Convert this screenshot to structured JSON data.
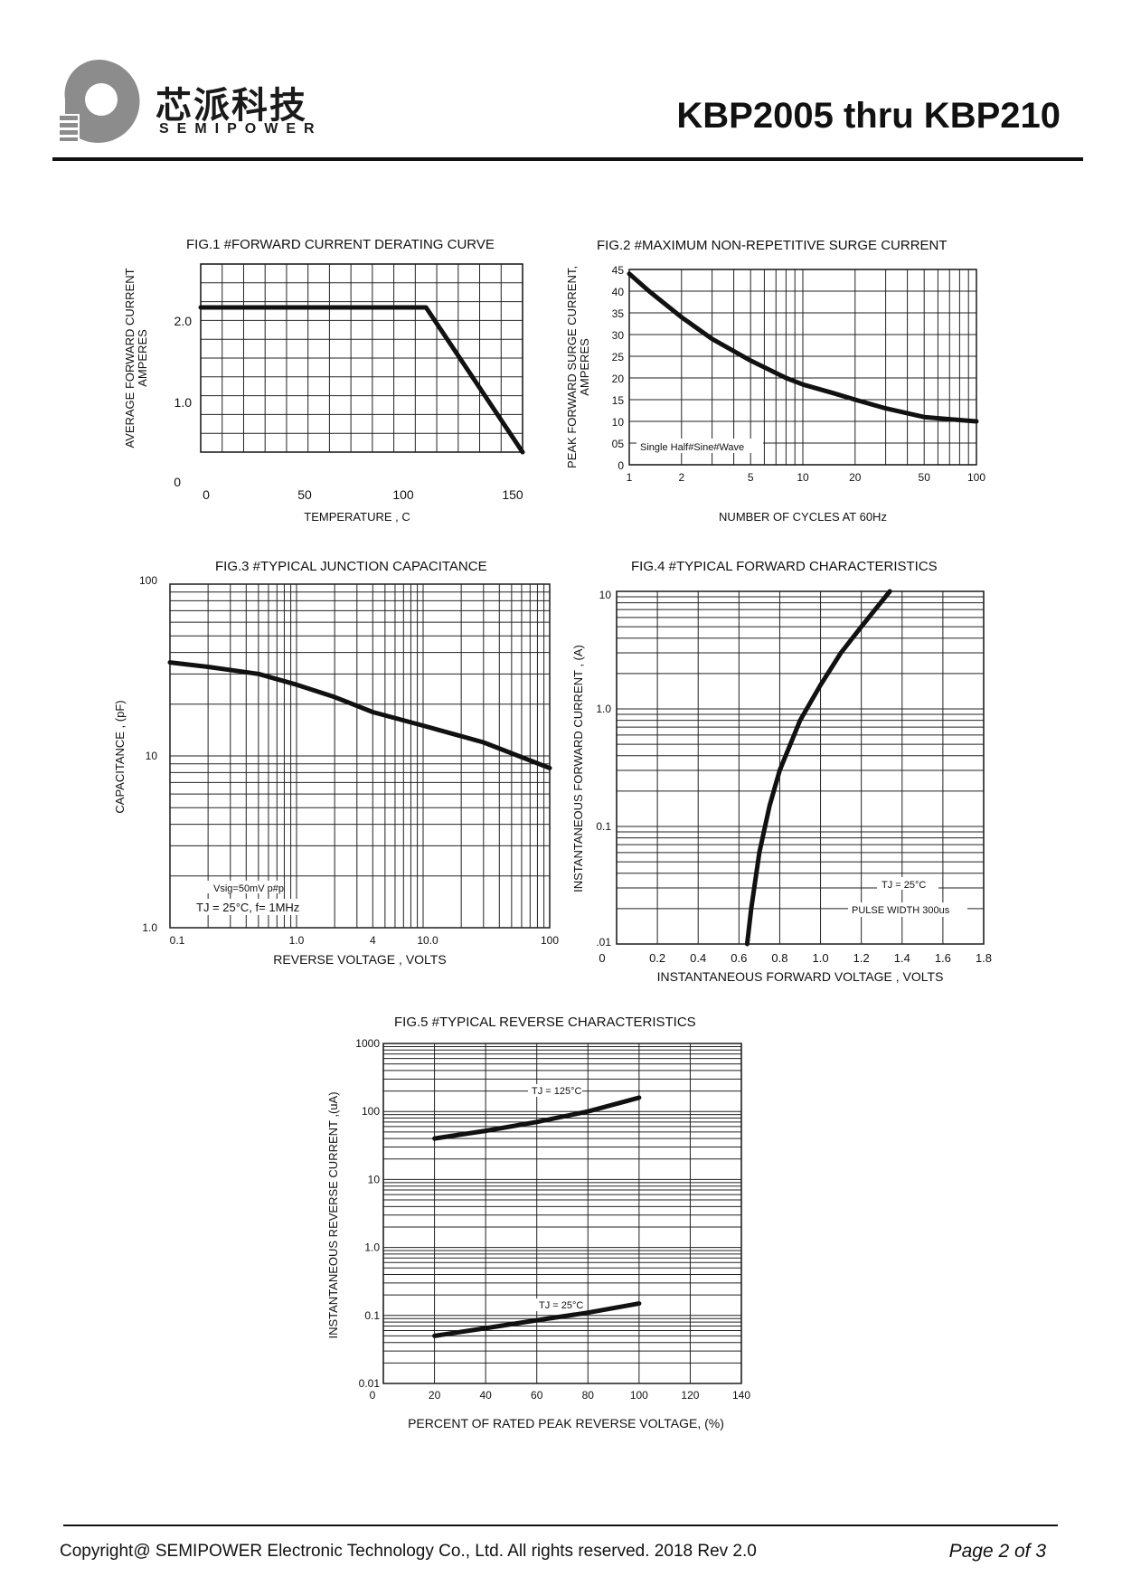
{
  "header": {
    "logo_cn": "芯派科技",
    "logo_en": "SEMIPOWER",
    "title": "KBP2005 thru KBP210"
  },
  "footer": {
    "copyright": "Copyright@ SEMIPOWER Electronic Technology Co., Ltd.  All rights reserved.  2018  Rev  2.0",
    "page": "Page  2  of  3"
  },
  "colors": {
    "ink": "#111111",
    "grid": "#222222",
    "logo_gray": "#8c8c8c"
  },
  "chart_data": [
    {
      "type": "line",
      "title": "FIG.1 #FORWARD CURRENT DERATING CURVE",
      "xlabel": "TEMPERATURE , C",
      "ylabel": [
        "AVERAGE FORWARD CURRENT",
        "AMPERES"
      ],
      "xlim": [
        0,
        150
      ],
      "ylim": [
        0,
        2.6
      ],
      "xticks": [
        "0",
        "50",
        "100",
        "150"
      ],
      "yticks": [
        "0",
        "1.0",
        "2.0"
      ],
      "grid": true,
      "series": [
        {
          "x": [
            0,
            105,
            150
          ],
          "y": [
            2.0,
            2.0,
            0
          ]
        }
      ]
    },
    {
      "type": "line",
      "title": "FIG.2 #MAXIMUM NON-REPETITIVE SURGE CURRENT",
      "xlabel": "NUMBER OF CYCLES AT 60Hz",
      "ylabel": [
        "PEAK FORWARD SURGE CURRENT,",
        "AMPERES"
      ],
      "xscale": "log",
      "xlim": [
        1,
        100
      ],
      "ylim": [
        0,
        45
      ],
      "xticks": [
        "1",
        "2",
        "5",
        "10",
        "20",
        "50",
        "100"
      ],
      "yticks": [
        "0",
        "05",
        "10",
        "15",
        "20",
        "25",
        "30",
        "35",
        "40",
        "45"
      ],
      "grid": true,
      "annotations": [
        "Single Half#Sine#Wave"
      ],
      "series": [
        {
          "x": [
            1,
            1.3,
            2,
            3,
            5,
            8,
            10,
            15,
            20,
            30,
            50,
            70,
            100
          ],
          "y": [
            44,
            40,
            34,
            29,
            24,
            20,
            18.5,
            16.5,
            15,
            13,
            11,
            10.5,
            10
          ]
        }
      ]
    },
    {
      "type": "line",
      "title": "FIG.3 #TYPICAL JUNCTION CAPACITANCE",
      "xlabel": "REVERSE VOLTAGE , VOLTS",
      "ylabel": "CAPACITANCE , (pF)",
      "xscale": "log",
      "yscale": "log",
      "xlim": [
        0.1,
        100
      ],
      "ylim": [
        1,
        100
      ],
      "xticks": [
        "0.1",
        "1.0",
        "4",
        "10.0",
        "100"
      ],
      "yticks": [
        "1.0",
        "10",
        "100"
      ],
      "grid": true,
      "annotations": [
        "Vsig=50mV p#p",
        "TJ = 25°C,  f= 1MHz"
      ],
      "series": [
        {
          "x": [
            0.1,
            0.2,
            0.5,
            1,
            2,
            4,
            10,
            30,
            100
          ],
          "y": [
            35,
            33,
            30,
            26,
            22,
            18,
            15,
            12,
            8.5
          ]
        }
      ]
    },
    {
      "type": "line",
      "title": "FIG.4 #TYPICAL FORWARD CHARACTERISTICS",
      "xlabel": "INSTANTANEOUS FORWARD VOLTAGE , VOLTS",
      "ylabel": "INSTANTANEOUS  FORWARD CURRENT , (A)",
      "yscale": "log",
      "xlim": [
        0,
        1.8
      ],
      "ylim": [
        0.01,
        10
      ],
      "xticks": [
        "0",
        "0.2",
        "0.4",
        "0.6",
        "0.8",
        "1.0",
        "1.2",
        "1.4",
        "1.6",
        "1.8"
      ],
      "yticks": [
        ".01",
        "0.1",
        "1.0",
        "10"
      ],
      "grid": true,
      "annotations": [
        "TJ = 25°C",
        "PULSE WIDTH 300us"
      ],
      "series": [
        {
          "x": [
            0.64,
            0.66,
            0.7,
            0.75,
            0.8,
            0.9,
            1.0,
            1.1,
            1.2,
            1.34
          ],
          "y": [
            0.01,
            0.02,
            0.06,
            0.15,
            0.3,
            0.8,
            1.6,
            3,
            5,
            10
          ]
        }
      ]
    },
    {
      "type": "line",
      "title": "FIG.5 #TYPICAL REVERSE CHARACTERISTICS",
      "xlabel": "PERCENT OF RATED PEAK REVERSE VOLTAGE, (%)",
      "ylabel": "INSTANTANEOUS REVERSE CURRENT ,(uA)",
      "yscale": "log",
      "xlim": [
        0,
        140
      ],
      "ylim": [
        0.01,
        1000
      ],
      "xticks": [
        "0",
        "20",
        "40",
        "60",
        "80",
        "100",
        "120",
        "140"
      ],
      "yticks": [
        "0.01",
        "0.1",
        "1.0",
        "10",
        "100",
        "1000"
      ],
      "grid": true,
      "series": [
        {
          "name": "TJ = 125°C",
          "x": [
            20,
            40,
            60,
            80,
            100
          ],
          "y": [
            40,
            52,
            70,
            100,
            160
          ]
        },
        {
          "name": "TJ = 25°C",
          "x": [
            20,
            40,
            60,
            80,
            100
          ],
          "y": [
            0.05,
            0.065,
            0.085,
            0.11,
            0.15
          ]
        }
      ]
    }
  ]
}
